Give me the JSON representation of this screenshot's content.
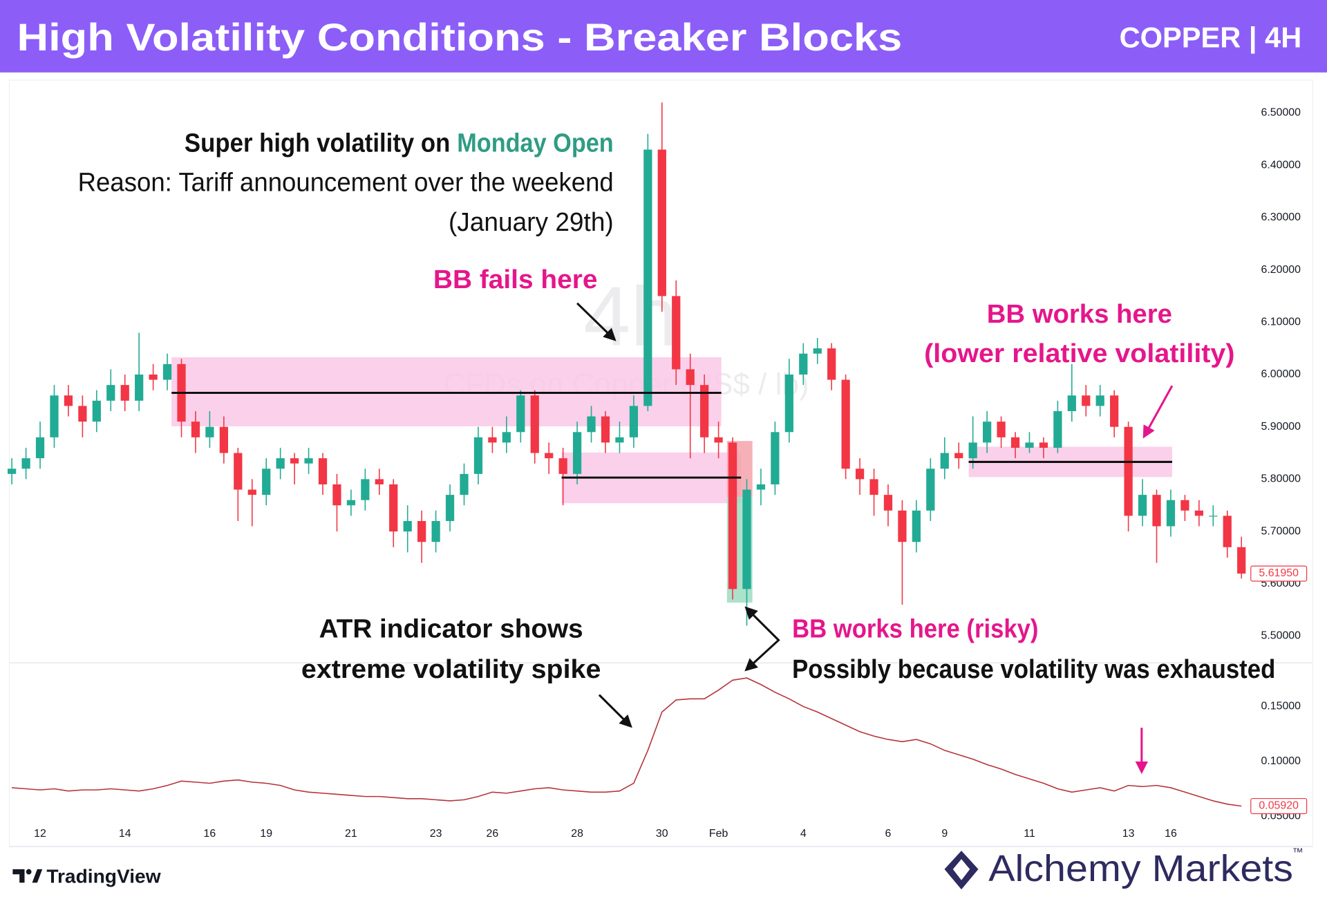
{
  "header": {
    "title": "High Volatility Conditions - Breaker Blocks",
    "badge": "COPPER | 4H"
  },
  "chart_data": [
    {
      "type": "candlestick",
      "watermark": {
        "interval": "4h",
        "symbol": "CFDs on Copper (US$ / lb)"
      },
      "categories": [
        null,
        null,
        "12",
        null,
        null,
        null,
        null,
        null,
        "14",
        null,
        null,
        null,
        null,
        null,
        "16",
        null,
        null,
        null,
        "19",
        null,
        null,
        null,
        null,
        null,
        "21",
        null,
        null,
        null,
        null,
        null,
        "23",
        null,
        null,
        null,
        "26",
        null,
        null,
        null,
        null,
        null,
        "28",
        null,
        null,
        null,
        null,
        null,
        "30",
        null,
        null,
        null,
        "Feb",
        null,
        null,
        null,
        null,
        null,
        "4",
        null,
        null,
        null,
        null,
        null,
        "6",
        null,
        null,
        null,
        "9",
        null,
        null,
        null,
        null,
        null,
        "11",
        null,
        null,
        null,
        null,
        null,
        null,
        "13",
        null,
        null,
        "16",
        null,
        null,
        null,
        null,
        null
      ],
      "open": [
        5.81,
        5.82,
        5.84,
        5.88,
        5.96,
        5.94,
        5.91,
        5.95,
        5.98,
        5.95,
        6.0,
        5.99,
        6.02,
        5.91,
        5.88,
        5.9,
        5.85,
        5.78,
        5.77,
        5.82,
        5.84,
        5.83,
        5.84,
        5.79,
        5.75,
        5.76,
        5.8,
        5.79,
        5.7,
        5.72,
        5.68,
        5.72,
        5.77,
        5.81,
        5.88,
        5.87,
        5.89,
        5.96,
        5.85,
        5.84,
        5.81,
        5.89,
        5.92,
        5.87,
        5.88,
        5.94,
        6.43,
        6.15,
        6.01,
        5.98,
        5.88,
        5.87,
        5.59,
        5.78,
        5.79,
        5.89,
        6.0,
        6.04,
        6.05,
        5.99,
        5.82,
        5.8,
        5.77,
        5.74,
        5.68,
        5.74,
        5.82,
        5.85,
        5.84,
        5.87,
        5.91,
        5.88,
        5.86,
        5.87,
        5.86,
        5.93,
        5.96,
        5.94,
        5.96,
        5.9,
        5.73,
        5.77,
        5.71,
        5.76,
        5.74,
        5.73,
        5.73,
        5.67
      ],
      "high": [
        5.84,
        5.86,
        5.91,
        5.98,
        5.98,
        5.96,
        5.97,
        6.01,
        6.0,
        6.08,
        6.02,
        6.04,
        6.03,
        5.93,
        5.93,
        5.92,
        5.86,
        5.8,
        5.84,
        5.86,
        5.85,
        5.86,
        5.85,
        5.81,
        5.78,
        5.82,
        5.82,
        5.8,
        5.75,
        5.74,
        5.74,
        5.79,
        5.83,
        5.9,
        5.9,
        5.92,
        5.97,
        5.97,
        5.87,
        5.86,
        5.91,
        5.94,
        5.93,
        5.91,
        5.96,
        6.46,
        6.52,
        6.18,
        6.04,
        6.0,
        5.91,
        5.88,
        5.8,
        5.82,
        5.91,
        6.03,
        6.06,
        6.07,
        6.06,
        6.0,
        5.84,
        5.82,
        5.79,
        5.76,
        5.76,
        5.84,
        5.88,
        5.87,
        5.92,
        5.93,
        5.92,
        5.89,
        5.89,
        5.88,
        5.95,
        6.02,
        5.98,
        5.98,
        5.97,
        5.91,
        5.8,
        5.78,
        5.78,
        5.77,
        5.76,
        5.75,
        5.74,
        5.69
      ],
      "low": [
        5.79,
        5.8,
        5.82,
        5.86,
        5.92,
        5.88,
        5.89,
        5.93,
        5.93,
        5.93,
        5.97,
        5.97,
        5.88,
        5.85,
        5.86,
        5.83,
        5.72,
        5.71,
        5.75,
        5.8,
        5.79,
        5.81,
        5.77,
        5.7,
        5.73,
        5.74,
        5.77,
        5.67,
        5.66,
        5.64,
        5.66,
        5.7,
        5.75,
        5.79,
        5.85,
        5.85,
        5.87,
        5.83,
        5.81,
        5.75,
        5.79,
        5.87,
        5.85,
        5.85,
        5.86,
        5.93,
        6.12,
        5.98,
        5.84,
        5.85,
        5.84,
        5.57,
        5.52,
        5.75,
        5.77,
        5.87,
        5.98,
        6.02,
        5.97,
        5.8,
        5.77,
        5.73,
        5.71,
        5.56,
        5.66,
        5.72,
        5.8,
        5.82,
        5.82,
        5.85,
        5.86,
        5.84,
        5.85,
        5.84,
        5.85,
        5.91,
        5.92,
        5.92,
        5.88,
        5.7,
        5.71,
        5.64,
        5.69,
        5.72,
        5.71,
        5.71,
        5.65,
        5.61
      ],
      "close": [
        5.82,
        5.84,
        5.88,
        5.96,
        5.94,
        5.91,
        5.95,
        5.98,
        5.95,
        6.0,
        5.99,
        6.02,
        5.91,
        5.88,
        5.9,
        5.85,
        5.78,
        5.77,
        5.82,
        5.84,
        5.83,
        5.84,
        5.79,
        5.75,
        5.76,
        5.8,
        5.79,
        5.7,
        5.72,
        5.68,
        5.72,
        5.77,
        5.81,
        5.88,
        5.87,
        5.89,
        5.96,
        5.85,
        5.84,
        5.81,
        5.89,
        5.92,
        5.87,
        5.88,
        5.94,
        6.43,
        6.15,
        6.01,
        5.98,
        5.88,
        5.87,
        5.59,
        5.78,
        5.79,
        5.89,
        6.0,
        6.04,
        6.05,
        5.99,
        5.82,
        5.8,
        5.77,
        5.74,
        5.68,
        5.74,
        5.82,
        5.85,
        5.84,
        5.87,
        5.91,
        5.88,
        5.86,
        5.87,
        5.86,
        5.93,
        5.96,
        5.94,
        5.96,
        5.9,
        5.73,
        5.77,
        5.71,
        5.76,
        5.74,
        5.73,
        5.73,
        5.67,
        5.6195
      ],
      "up_color": "#22ab94",
      "down_color": "#f23645",
      "last_label": "5.61950",
      "ylim": [
        5.452,
        6.563
      ],
      "yticks": [
        {
          "value": 5.5,
          "label": "5.50000"
        },
        {
          "value": 5.6,
          "label": "5.60000"
        },
        {
          "value": 5.7,
          "label": "5.70000"
        },
        {
          "value": 5.8,
          "label": "5.80000"
        },
        {
          "value": 5.9,
          "label": "5.90000"
        },
        {
          "value": 6.0,
          "label": "6.00000"
        },
        {
          "value": 6.1,
          "label": "6.10000"
        },
        {
          "value": 6.2,
          "label": "6.20000"
        },
        {
          "value": 6.3,
          "label": "6.30000"
        },
        {
          "value": 6.4,
          "label": "6.40000"
        },
        {
          "value": 6.5,
          "label": "6.50000"
        }
      ],
      "zones": [
        {
          "start": 11.3,
          "end": 50.2,
          "top": 6.033,
          "bottom": 5.901,
          "line": 5.965,
          "color": "#fac8e6"
        },
        {
          "start": 38.9,
          "end": 51.6,
          "top": 5.851,
          "bottom": 5.754,
          "line": 5.803,
          "color": "#fac8e6"
        },
        {
          "start": 67.7,
          "end": 82.1,
          "top": 5.862,
          "bottom": 5.804,
          "line": 5.833,
          "color": "#fac8e6"
        },
        {
          "start": 50.6,
          "end": 52.4,
          "top": 5.873,
          "bottom": 5.766,
          "color": "#f5a3ab"
        },
        {
          "start": 50.6,
          "end": 52.4,
          "top": 5.766,
          "bottom": 5.564,
          "color": "#9ddcc1"
        }
      ],
      "annotations": {
        "headline": "Super high volatility on",
        "headline_highlight": "Monday Open",
        "reason": "Reason: Tariff announcement over the weekend",
        "date": "(January 29th)",
        "bb_fails": "BB fails here",
        "bb_works": "BB works here",
        "bb_works_note": "(lower relative volatility)",
        "atr_1": "ATR indicator shows",
        "atr_2": "extreme volatility spike",
        "bb_risky": "BB works here (risky)",
        "bb_risky_note": "Possibly because volatility was exhausted"
      }
    },
    {
      "type": "line",
      "color": "#b5333c",
      "values": [
        0.076,
        0.075,
        0.074,
        0.075,
        0.073,
        0.074,
        0.074,
        0.075,
        0.074,
        0.073,
        0.075,
        0.078,
        0.082,
        0.081,
        0.08,
        0.082,
        0.083,
        0.081,
        0.08,
        0.078,
        0.074,
        0.072,
        0.071,
        0.07,
        0.069,
        0.068,
        0.068,
        0.067,
        0.066,
        0.066,
        0.065,
        0.064,
        0.065,
        0.068,
        0.072,
        0.071,
        0.073,
        0.075,
        0.076,
        0.074,
        0.073,
        0.072,
        0.072,
        0.073,
        0.08,
        0.11,
        0.145,
        0.156,
        0.157,
        0.157,
        0.165,
        0.174,
        0.176,
        0.17,
        0.163,
        0.157,
        0.15,
        0.145,
        0.139,
        0.133,
        0.127,
        0.123,
        0.12,
        0.118,
        0.12,
        0.116,
        0.11,
        0.106,
        0.102,
        0.097,
        0.093,
        0.088,
        0.084,
        0.08,
        0.075,
        0.072,
        0.074,
        0.076,
        0.073,
        0.078,
        0.077,
        0.078,
        0.076,
        0.072,
        0.068,
        0.064,
        0.061,
        0.0592
      ],
      "last_label": "0.05920",
      "ylim": [
        0.0454,
        0.189
      ],
      "yticks": [
        {
          "value": 0.05,
          "label": "0.05000"
        },
        {
          "value": 0.1,
          "label": "0.10000"
        },
        {
          "value": 0.15,
          "label": "0.15000"
        }
      ]
    }
  ],
  "footer": {
    "left": "TradingView",
    "right": "Alchemy Markets",
    "trademark": "™"
  }
}
